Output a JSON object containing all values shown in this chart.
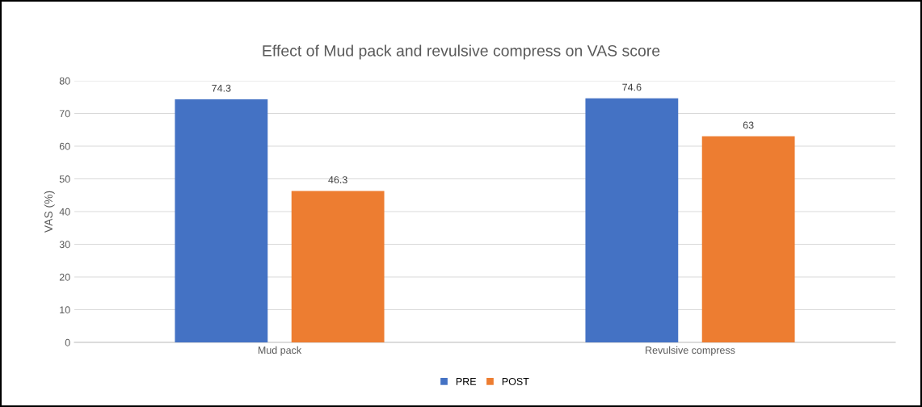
{
  "chart_data": {
    "type": "bar",
    "title": "Effect of Mud pack and revulsive compress on VAS score",
    "ylabel": "VAS (%)",
    "categories": [
      "Mud pack",
      "Revulsive compress"
    ],
    "series": [
      {
        "name": "PRE",
        "color": "#4472c4",
        "values": [
          74.3,
          74.6
        ]
      },
      {
        "name": "POST",
        "color": "#ed7d31",
        "values": [
          46.3,
          63
        ]
      }
    ],
    "ylim": [
      0,
      80
    ],
    "yticks": [
      0,
      10,
      20,
      30,
      40,
      50,
      60,
      70,
      80
    ],
    "grid": "y",
    "legend": "bottom",
    "data_labels": true
  }
}
